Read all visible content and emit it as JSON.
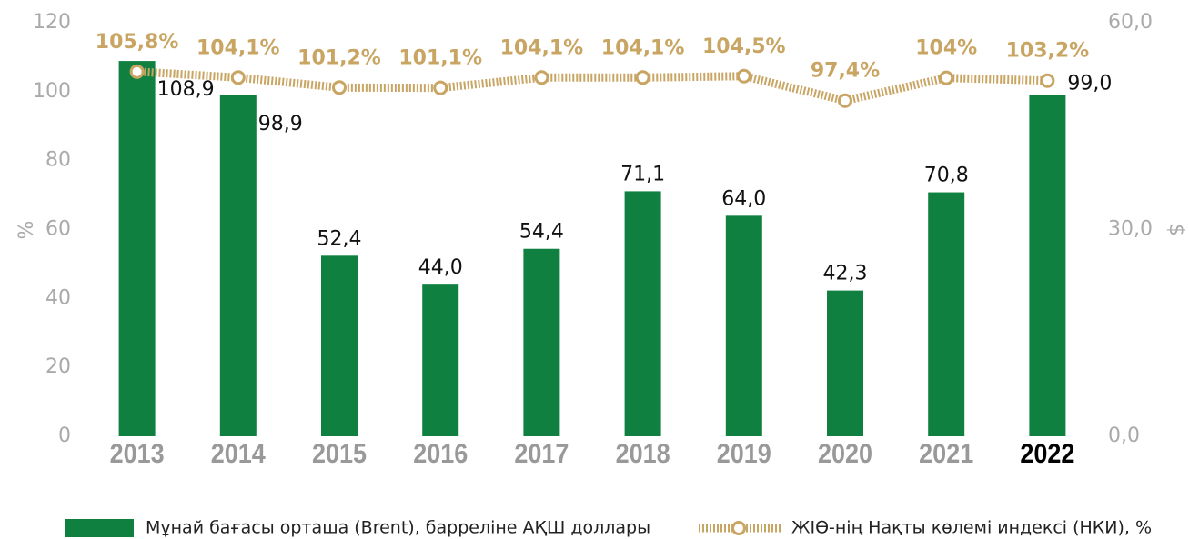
{
  "chart_data": {
    "type": "bar_line",
    "categories": [
      "2013",
      "2014",
      "2015",
      "2016",
      "2017",
      "2018",
      "2019",
      "2020",
      "2021",
      "2022"
    ],
    "highlight": 9,
    "series": [
      {
        "name": "Мұнай бағасы орташа (Brent), баррелiне АҚШ доллары",
        "type": "bar",
        "color": "#0f8040",
        "values": [
          108.9,
          98.9,
          52.4,
          44.0,
          54.4,
          71.1,
          64.0,
          42.3,
          70.8,
          99.0
        ],
        "value_labels": [
          "108,9",
          "98,9",
          "52,4",
          "44,0",
          "54,4",
          "71,1",
          "64,0",
          "42,3",
          "70,8",
          "99,0"
        ]
      },
      {
        "name": "ЖIӨ-нiң Нақты көлемi индексi (НКИ), %",
        "type": "line",
        "color": "#c9a563",
        "values": [
          105.8,
          104.1,
          101.2,
          101.1,
          104.1,
          104.1,
          104.5,
          97.4,
          104,
          103.2
        ],
        "value_labels": [
          "105,8%",
          "104,1%",
          "101,2%",
          "101,1%",
          "104,1%",
          "104,1%",
          "104,5%",
          "97,4%",
          "104%",
          "103,2%"
        ]
      }
    ],
    "ylabel": "%",
    "y2label": "$",
    "ylim": [
      0,
      120
    ],
    "yticks": [
      0,
      20,
      40,
      60,
      80,
      100,
      120
    ],
    "y2lim": [
      0,
      60
    ],
    "y2ticks": [
      {
        "value": 0,
        "label": "0,0"
      },
      {
        "value": 30,
        "label": "30,0"
      },
      {
        "value": 60,
        "label": "60,0"
      }
    ],
    "legend": "bottom"
  }
}
